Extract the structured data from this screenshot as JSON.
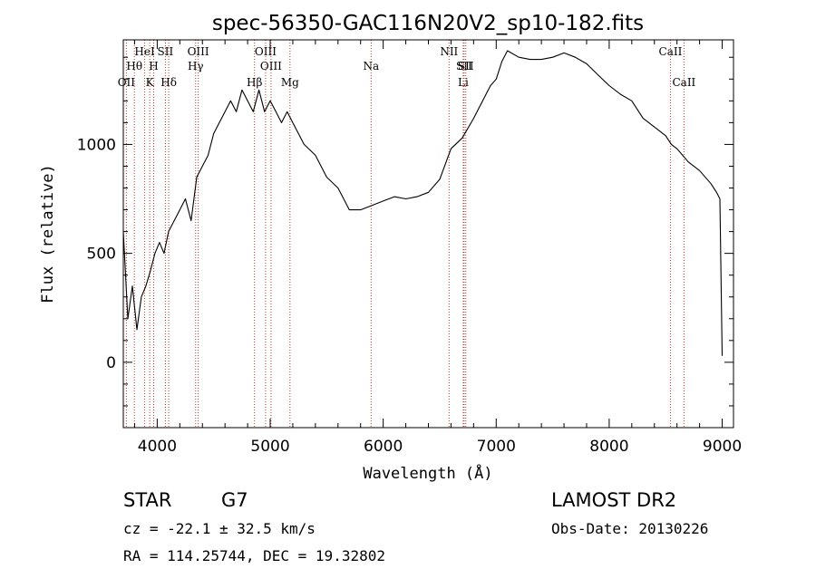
{
  "chart_data": {
    "type": "line",
    "title": "spec-56350-GAC116N20V2_sp10-182.fits",
    "xlabel": "Wavelength (Å)",
    "ylabel": "Flux (relative)",
    "xlim": [
      3700,
      9100
    ],
    "ylim": [
      -300,
      1480
    ],
    "xticks": [
      4000,
      5000,
      6000,
      7000,
      8000,
      9000
    ],
    "yticks": [
      0,
      500,
      1000
    ],
    "spectral_lines": [
      {
        "label": "OII",
        "wavelength": 3727,
        "row": 3
      },
      {
        "label": "Hθ",
        "wavelength": 3798,
        "row": 2
      },
      {
        "label": "HeI",
        "wavelength": 3889,
        "row": 1
      },
      {
        "label": "K",
        "wavelength": 3934,
        "row": 3
      },
      {
        "label": "H",
        "wavelength": 3969,
        "row": 2
      },
      {
        "label": "SII",
        "wavelength": 4072,
        "row": 1
      },
      {
        "label": "Hδ",
        "wavelength": 4102,
        "row": 3
      },
      {
        "label": "OIII",
        "wavelength": 4363,
        "row": 1
      },
      {
        "label": "Hγ",
        "wavelength": 4340,
        "row": 2
      },
      {
        "label": "Hβ",
        "wavelength": 4861,
        "row": 3
      },
      {
        "label": "OIII",
        "wavelength": 4959,
        "row": 1
      },
      {
        "label": "OIII",
        "wavelength": 5007,
        "row": 2
      },
      {
        "label": "Mg",
        "wavelength": 5175,
        "row": 3
      },
      {
        "label": "Na",
        "wavelength": 5893,
        "row": 2
      },
      {
        "label": "NII",
        "wavelength": 6583,
        "row": 1
      },
      {
        "label": "Li",
        "wavelength": 6708,
        "row": 3
      },
      {
        "label": "SII",
        "wavelength": 6716,
        "row": 2
      },
      {
        "label": "SII",
        "wavelength": 6731,
        "row": 2
      },
      {
        "label": "CaII",
        "wavelength": 8542,
        "row": 1
      },
      {
        "label": "CaII",
        "wavelength": 8662,
        "row": 3
      }
    ],
    "series": [
      {
        "name": "flux",
        "x": [
          3700,
          3740,
          3780,
          3820,
          3860,
          3900,
          3940,
          3980,
          4020,
          4060,
          4100,
          4150,
          4200,
          4250,
          4300,
          4350,
          4400,
          4450,
          4500,
          4550,
          4600,
          4650,
          4700,
          4750,
          4800,
          4850,
          4900,
          4950,
          5000,
          5050,
          5100,
          5150,
          5200,
          5300,
          5400,
          5500,
          5600,
          5700,
          5800,
          5900,
          6000,
          6100,
          6200,
          6300,
          6400,
          6500,
          6600,
          6700,
          6800,
          6900,
          6950,
          7000,
          7050,
          7100,
          7200,
          7300,
          7400,
          7500,
          7600,
          7700,
          7800,
          7900,
          8000,
          8100,
          8200,
          8300,
          8400,
          8500,
          8550,
          8600,
          8650,
          8700,
          8800,
          8900,
          8950,
          8980,
          9000
        ],
        "y": [
          600,
          200,
          350,
          150,
          300,
          350,
          420,
          500,
          550,
          500,
          600,
          650,
          700,
          750,
          650,
          850,
          900,
          950,
          1050,
          1100,
          1150,
          1200,
          1150,
          1250,
          1200,
          1150,
          1250,
          1150,
          1200,
          1150,
          1100,
          1150,
          1100,
          1000,
          950,
          850,
          800,
          700,
          700,
          720,
          740,
          760,
          750,
          760,
          780,
          840,
          980,
          1030,
          1120,
          1220,
          1270,
          1300,
          1380,
          1430,
          1400,
          1390,
          1390,
          1400,
          1420,
          1400,
          1370,
          1320,
          1270,
          1230,
          1200,
          1120,
          1080,
          1040,
          1000,
          980,
          950,
          920,
          880,
          820,
          780,
          750,
          30
        ]
      }
    ]
  },
  "info": {
    "object_class": "STAR",
    "subclass": "G7",
    "survey": "LAMOST DR2",
    "redshift": "cz = -22.1 ± 32.5 km/s",
    "obs_date": "Obs-Date: 20130226",
    "coords": "RA = 114.25744, DEC =  19.32802"
  }
}
